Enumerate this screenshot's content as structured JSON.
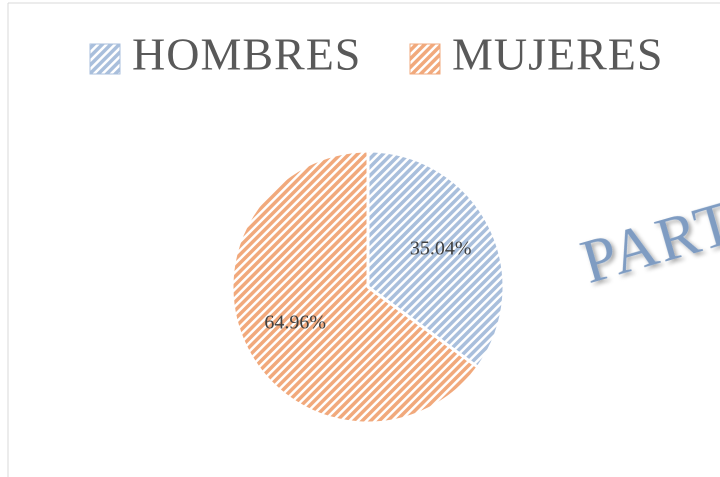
{
  "chart_data": {
    "type": "pie",
    "categories": [
      "HOMBRES",
      "MUJERES"
    ],
    "values": [
      35.04,
      64.96
    ],
    "value_labels": [
      "35.04%",
      "64.96%"
    ],
    "colors": [
      "#a9bfdc",
      "#f1a97c"
    ],
    "legend": "top",
    "annotations": [
      "PART"
    ]
  }
}
